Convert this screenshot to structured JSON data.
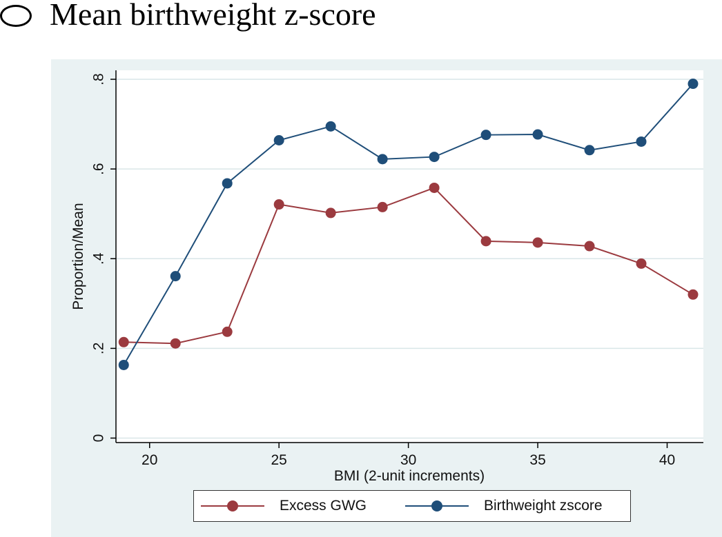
{
  "panel": {
    "title": "Mean birthweight z-score"
  },
  "colors": {
    "excess": "#9b3a3f",
    "birthweight": "#1f4e79",
    "grid": "#d9e6e8",
    "plot_bg": "#ffffff",
    "frame_bg": "#eaf2f3"
  },
  "chart_data": {
    "type": "line",
    "title": "",
    "xlabel": "BMI (2-unit increments)",
    "ylabel": "Proportion/Mean",
    "xlim": [
      18.7,
      41.4
    ],
    "ylim": [
      -0.01,
      0.82
    ],
    "xticks": [
      20,
      25,
      30,
      35,
      40
    ],
    "xtick_labels": [
      "20",
      "25",
      "30",
      "35",
      "40"
    ],
    "yticks": [
      0,
      0.2,
      0.4,
      0.6,
      0.8
    ],
    "ytick_labels": [
      "0",
      ".2",
      ".4",
      ".6",
      ".8"
    ],
    "x": [
      19,
      21,
      23,
      25,
      27,
      29,
      31,
      33,
      35,
      37,
      39,
      41
    ],
    "series": [
      {
        "name": "Excess GWG",
        "color": "#9b3a3f",
        "values": [
          0.214,
          0.211,
          0.237,
          0.521,
          0.502,
          0.515,
          0.558,
          0.439,
          0.436,
          0.428,
          0.389,
          0.32
        ]
      },
      {
        "name": "Birthweight zscore",
        "color": "#1f4e79",
        "values": [
          0.163,
          0.361,
          0.568,
          0.664,
          0.695,
          0.622,
          0.627,
          0.676,
          0.677,
          0.642,
          0.661,
          0.79
        ]
      }
    ],
    "grid": true,
    "legend_position": "bottom"
  }
}
